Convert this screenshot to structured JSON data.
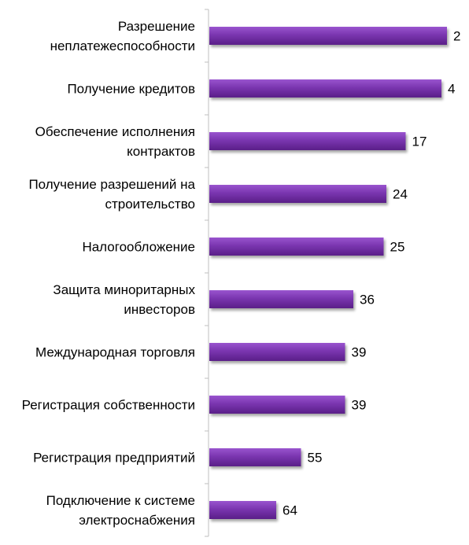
{
  "chart_data": {
    "type": "bar",
    "orientation": "horizontal",
    "categories": [
      "Разрешение неплатежеспособности",
      "Получение кредитов",
      "Обеспечение исполнения контрактов",
      "Получение разрешений на строительство",
      "Налогообложение",
      "Защита миноритарных инвесторов",
      "Международная торговля",
      "Регистрация собственности",
      "Регистрация предприятий",
      "Подключение к системе электроснабжения"
    ],
    "category_lines": [
      [
        "Разрешение",
        "неплатежеспособности"
      ],
      [
        "Получение кредитов"
      ],
      [
        "Обеспечение исполнения",
        "контрактов"
      ],
      [
        "Получение разрешений на",
        "строительство"
      ],
      [
        "Налогообложение"
      ],
      [
        "Защита миноритарных",
        "инвесторов"
      ],
      [
        "Международная торговля"
      ],
      [
        "Регистрация собственности"
      ],
      [
        "Регистрация предприятий"
      ],
      [
        "Подключение к системе",
        "электроснабжения"
      ]
    ],
    "values": [
      2,
      4,
      17,
      24,
      25,
      36,
      39,
      39,
      55,
      64
    ],
    "value_labels": [
      "2",
      "4",
      "17",
      "24",
      "25",
      "36",
      "39",
      "39",
      "55",
      "64"
    ],
    "title": "",
    "xlabel": "",
    "ylabel": "",
    "axis": "reversed",
    "grid": false,
    "legend": "none",
    "colors": {
      "bar": "#7a35b0",
      "bar_light": "#9a55cf",
      "bar_dark": "#5a1f88",
      "axis": "#bfbfbf"
    }
  }
}
